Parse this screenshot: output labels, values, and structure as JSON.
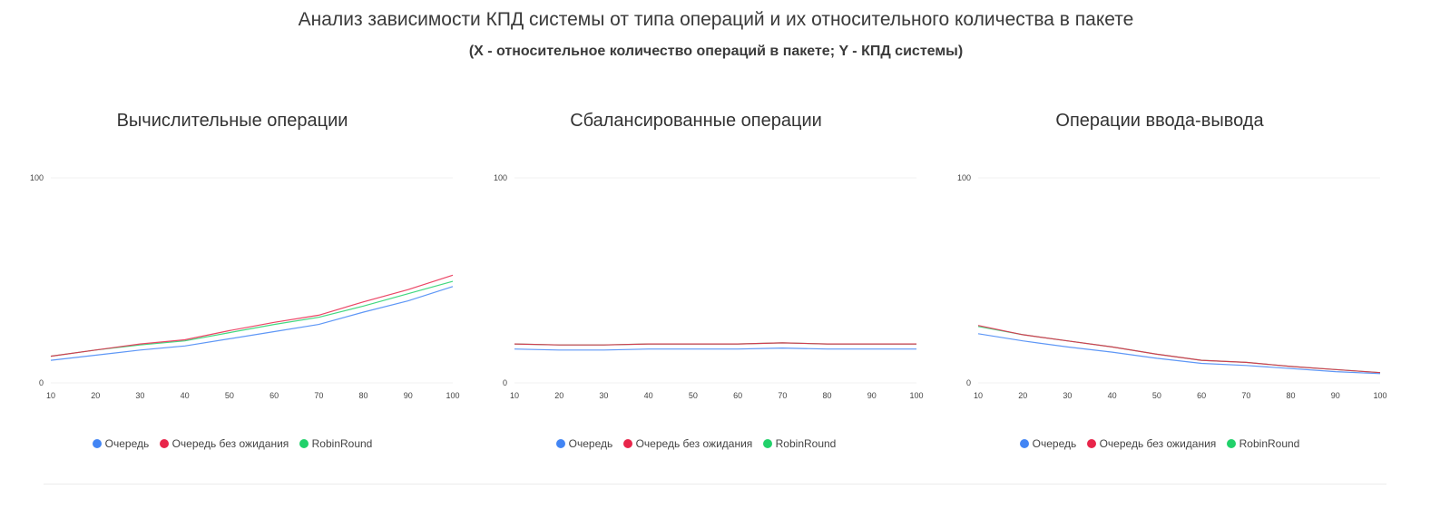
{
  "header": {
    "title": "Анализ зависимости КПД системы от типа операций и их относительного количества в пакете",
    "subtitle": "(X - относительное количество операций в пакете; Y - КПД системы)"
  },
  "colors": {
    "series": [
      "#4285f4",
      "#e8254a",
      "#21d16a"
    ]
  },
  "chart_data": [
    {
      "type": "line",
      "title": "Вычислительные операции",
      "x": [
        10,
        20,
        30,
        40,
        50,
        60,
        70,
        80,
        90,
        100
      ],
      "ylim": [
        0,
        100
      ],
      "yticks": [
        "0",
        "100"
      ],
      "xticks": [
        "10",
        "20",
        "30",
        "40",
        "50",
        "60",
        "70",
        "80",
        "90",
        "100"
      ],
      "grid": true,
      "legend": "bottom",
      "series": [
        {
          "name": "Очередь",
          "values": [
            11,
            13.5,
            16,
            18,
            21.5,
            25,
            28.5,
            34.5,
            40,
            47
          ]
        },
        {
          "name": "Очередь без ожидания",
          "values": [
            13,
            16,
            19,
            21,
            25.5,
            29.5,
            33,
            39.5,
            45.5,
            52.5
          ]
        },
        {
          "name": "RobinRound",
          "values": [
            13,
            16,
            18.5,
            20.5,
            24.5,
            28.5,
            32,
            37.5,
            43.5,
            49.5
          ]
        }
      ]
    },
    {
      "type": "line",
      "title": "Сбалансированные операции",
      "x": [
        10,
        20,
        30,
        40,
        50,
        60,
        70,
        80,
        90,
        100
      ],
      "ylim": [
        0,
        100
      ],
      "yticks": [
        "0",
        "100"
      ],
      "xticks": [
        "10",
        "20",
        "30",
        "40",
        "50",
        "60",
        "70",
        "80",
        "90",
        "100"
      ],
      "grid": true,
      "legend": "bottom",
      "series": [
        {
          "name": "Очередь",
          "values": [
            16.5,
            16,
            16,
            16.5,
            16.5,
            16.5,
            17,
            16.5,
            16.5,
            16.5
          ]
        },
        {
          "name": "Очередь без ожидания",
          "values": [
            19,
            18.5,
            18.5,
            19,
            19,
            19,
            19.5,
            19,
            19,
            19
          ]
        },
        {
          "name": "RobinRound",
          "values": [
            19,
            18.5,
            18.5,
            19,
            19,
            19,
            19.5,
            19,
            19,
            19
          ]
        }
      ]
    },
    {
      "type": "line",
      "title": "Операции ввода-вывода",
      "x": [
        10,
        20,
        30,
        40,
        50,
        60,
        70,
        80,
        90,
        100
      ],
      "ylim": [
        0,
        100
      ],
      "yticks": [
        "0",
        "100"
      ],
      "xticks": [
        "10",
        "20",
        "30",
        "40",
        "50",
        "60",
        "70",
        "80",
        "90",
        "100"
      ],
      "grid": true,
      "legend": "bottom",
      "series": [
        {
          "name": "Очередь",
          "values": [
            24,
            20.5,
            17.5,
            15,
            12,
            9.5,
            8.5,
            7,
            5.5,
            4.5
          ]
        },
        {
          "name": "Очередь без ожидания",
          "values": [
            28,
            23.5,
            20.5,
            17.5,
            14,
            11,
            10,
            8,
            6.5,
            5
          ]
        },
        {
          "name": "RobinRound",
          "values": [
            27.5,
            23.5,
            20.5,
            17.5,
            14,
            11,
            10,
            8,
            6.5,
            5
          ]
        }
      ]
    }
  ]
}
